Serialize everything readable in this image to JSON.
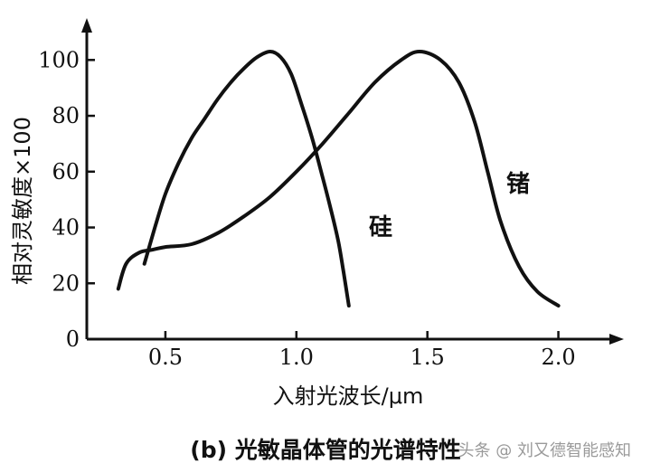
{
  "chart_data": {
    "type": "line",
    "xlabel": "入射光波长/μm",
    "ylabel": "相对灵敏度×100",
    "xlim": [
      0.2,
      2.25
    ],
    "ylim": [
      0,
      115
    ],
    "x_ticks": [
      "0.5",
      "1.0",
      "1.5",
      "2.0"
    ],
    "x_tick_values": [
      0.5,
      1.0,
      1.5,
      2.0
    ],
    "y_ticks": [
      "0",
      "20",
      "40",
      "60",
      "80",
      "100"
    ],
    "y_tick_values": [
      0,
      20,
      40,
      60,
      80,
      100
    ],
    "grid": false,
    "series": [
      {
        "name": "硅",
        "x": [
          0.42,
          0.46,
          0.5,
          0.55,
          0.6,
          0.65,
          0.7,
          0.75,
          0.8,
          0.85,
          0.9,
          0.94,
          0.98,
          1.02,
          1.06,
          1.1,
          1.13,
          1.16,
          1.18,
          1.2
        ],
        "y": [
          27,
          40,
          52,
          63,
          72,
          79,
          86,
          92,
          97,
          101,
          103,
          101,
          95,
          84,
          72,
          58,
          47,
          35,
          24,
          12
        ]
      },
      {
        "name": "锗",
        "x": [
          0.32,
          0.35,
          0.4,
          0.45,
          0.5,
          0.6,
          0.7,
          0.8,
          0.9,
          1.0,
          1.1,
          1.2,
          1.3,
          1.4,
          1.47,
          1.55,
          1.62,
          1.68,
          1.73,
          1.78,
          1.85,
          1.92,
          2.0
        ],
        "y": [
          18,
          27,
          31,
          32,
          33,
          34,
          38,
          44,
          51,
          60,
          70,
          81,
          92,
          100,
          103,
          100,
          92,
          78,
          60,
          42,
          26,
          17,
          12
        ]
      }
    ],
    "series_labels": [
      "硅",
      "锗"
    ]
  },
  "caption": "(b) 光敏晶体管的光谱特性",
  "watermark": "头条 @ 刘又德智能感知"
}
